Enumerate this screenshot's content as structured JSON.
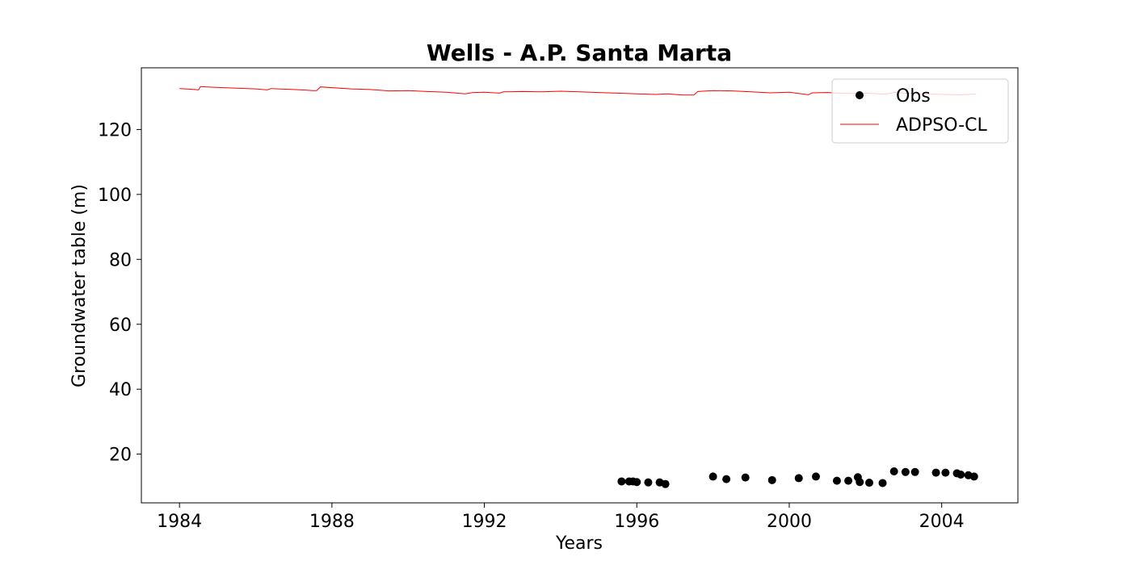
{
  "chart_data": {
    "type": "scatter",
    "title": "Wells - A.P. Santa Marta",
    "xlabel": "Years",
    "ylabel": "Groundwater table (m)",
    "xlim": [
      1983.0,
      2006.0
    ],
    "ylim": [
      5,
      139
    ],
    "x_ticks": [
      {
        "value": 1984,
        "label": "1984"
      },
      {
        "value": 1988,
        "label": "1988"
      },
      {
        "value": 1992,
        "label": "1992"
      },
      {
        "value": 1996,
        "label": "1996"
      },
      {
        "value": 2000,
        "label": "2000"
      },
      {
        "value": 2004,
        "label": "2004"
      }
    ],
    "y_ticks": [
      {
        "value": 20,
        "label": "20"
      },
      {
        "value": 40,
        "label": "40"
      },
      {
        "value": 60,
        "label": "60"
      },
      {
        "value": 80,
        "label": "80"
      },
      {
        "value": 100,
        "label": "100"
      },
      {
        "value": 120,
        "label": "120"
      }
    ],
    "grid": false,
    "legend_position": "top-right",
    "series": [
      {
        "name": "Obs",
        "kind": "scatter",
        "color": "#000000",
        "x": [
          1995.6,
          1995.8,
          1995.9,
          1996.0,
          1996.3,
          1996.6,
          1996.75,
          1998.0,
          1998.35,
          1998.85,
          1999.55,
          2000.25,
          2000.7,
          2001.25,
          2001.55,
          2001.8,
          2001.85,
          2002.1,
          2002.45,
          2002.75,
          2003.05,
          2003.3,
          2003.85,
          2004.1,
          2004.4,
          2004.5,
          2004.7,
          2004.85
        ],
        "y": [
          11.6,
          11.6,
          11.6,
          11.4,
          11.3,
          11.3,
          10.8,
          13.1,
          12.3,
          12.8,
          12.0,
          12.6,
          13.1,
          11.8,
          11.8,
          12.9,
          11.4,
          11.2,
          11.1,
          14.7,
          14.5,
          14.5,
          14.3,
          14.3,
          14.1,
          13.7,
          13.5,
          13.1
        ]
      },
      {
        "name": "ADPSO-CL",
        "kind": "line",
        "color": "#ff0000",
        "x": [
          1984.0,
          1984.3,
          1984.5,
          1984.55,
          1984.9,
          1985.5,
          1986.0,
          1986.3,
          1986.4,
          1987.0,
          1987.5,
          1987.6,
          1987.7,
          1988.5,
          1989.0,
          1989.5,
          1990.0,
          1990.5,
          1991.0,
          1991.5,
          1991.7,
          1992.0,
          1992.4,
          1992.5,
          1993.0,
          1993.5,
          1994.0,
          1994.5,
          1995.0,
          1995.5,
          1996.0,
          1996.5,
          1996.8,
          1997.2,
          1997.5,
          1997.6,
          1998.0,
          1998.5,
          1999.0,
          1999.5,
          2000.0,
          2000.5,
          2000.6,
          2001.0,
          2001.5,
          2002.0,
          2002.5,
          2002.8,
          2003.0,
          2003.5,
          2004.0,
          2004.5,
          2004.9
        ],
        "y": [
          132.6,
          132.4,
          132.2,
          133.2,
          133.0,
          132.7,
          132.5,
          132.2,
          132.6,
          132.3,
          132.0,
          132.0,
          133.1,
          132.5,
          132.3,
          131.9,
          132.0,
          131.7,
          131.5,
          131.0,
          131.4,
          131.5,
          131.2,
          131.6,
          131.7,
          131.6,
          131.8,
          131.6,
          131.4,
          131.2,
          131.0,
          130.8,
          131.0,
          130.6,
          130.6,
          131.7,
          132.0,
          131.9,
          131.6,
          131.3,
          131.5,
          130.7,
          131.3,
          131.4,
          131.1,
          131.2,
          130.9,
          131.5,
          131.2,
          131.0,
          130.8,
          130.7,
          130.9
        ]
      }
    ]
  }
}
